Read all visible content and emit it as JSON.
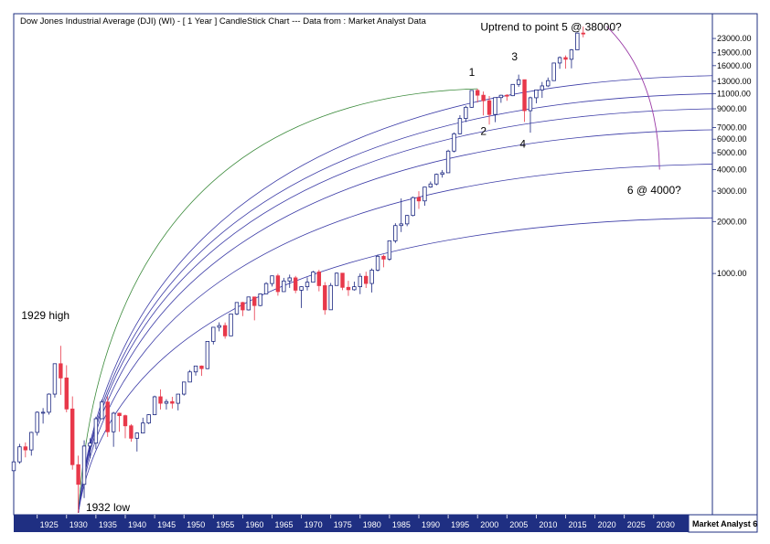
{
  "chart_data": {
    "type": "candlestick",
    "title": "Dow Jones Industrial Average (DJI) (WI) -  [ 1 Year ] CandleStick Chart --- Data from : Market Analyst Data",
    "interval": "1 Year",
    "y_scale": "log",
    "ylim": [
      40,
      32000
    ],
    "xlim": [
      1921,
      2040
    ],
    "y_ticks": [
      {
        "value": 23000,
        "label": "23000.00"
      },
      {
        "value": 19000,
        "label": "19000.00"
      },
      {
        "value": 16000,
        "label": "16000.00"
      },
      {
        "value": 13000,
        "label": "13000.00"
      },
      {
        "value": 11000,
        "label": "11000.00"
      },
      {
        "value": 9000,
        "label": "9000.00"
      },
      {
        "value": 7000,
        "label": "7000.00"
      },
      {
        "value": 6000,
        "label": "6000.00"
      },
      {
        "value": 5000,
        "label": "5000.00"
      },
      {
        "value": 4000,
        "label": "4000.00"
      },
      {
        "value": 3000,
        "label": "3000.00"
      },
      {
        "value": 2000,
        "label": "2000.00"
      },
      {
        "value": 1000,
        "label": "1000.00"
      }
    ],
    "x_ticks": [
      {
        "value": 1925,
        "label": "1925"
      },
      {
        "value": 1930,
        "label": "1930"
      },
      {
        "value": 1935,
        "label": "1935"
      },
      {
        "value": 1940,
        "label": "1940"
      },
      {
        "value": 1945,
        "label": "1945"
      },
      {
        "value": 1950,
        "label": "1950"
      },
      {
        "value": 1955,
        "label": "1955"
      },
      {
        "value": 1960,
        "label": "1960"
      },
      {
        "value": 1965,
        "label": "1965"
      },
      {
        "value": 1970,
        "label": "1970"
      },
      {
        "value": 1975,
        "label": "1975"
      },
      {
        "value": 1980,
        "label": "1980"
      },
      {
        "value": 1985,
        "label": "1985"
      },
      {
        "value": 1990,
        "label": "1990"
      },
      {
        "value": 1995,
        "label": "1995"
      },
      {
        "value": 2000,
        "label": "2000"
      },
      {
        "value": 2005,
        "label": "2005"
      },
      {
        "value": 2010,
        "label": "2010"
      },
      {
        "value": 2015,
        "label": "2015"
      },
      {
        "value": 2020,
        "label": "2020"
      },
      {
        "value": 2025,
        "label": "2025"
      },
      {
        "value": 2030,
        "label": "2030"
      }
    ],
    "candles": [
      {
        "year": 1921,
        "open": 72,
        "high": 82,
        "low": 64,
        "close": 81
      },
      {
        "year": 1922,
        "open": 81,
        "high": 103,
        "low": 79,
        "close": 99
      },
      {
        "year": 1923,
        "open": 99,
        "high": 105,
        "low": 86,
        "close": 95
      },
      {
        "year": 1924,
        "open": 95,
        "high": 121,
        "low": 88,
        "close": 120
      },
      {
        "year": 1925,
        "open": 120,
        "high": 159,
        "low": 115,
        "close": 157
      },
      {
        "year": 1926,
        "open": 157,
        "high": 166,
        "low": 135,
        "close": 157
      },
      {
        "year": 1927,
        "open": 157,
        "high": 202,
        "low": 152,
        "close": 200
      },
      {
        "year": 1928,
        "open": 200,
        "high": 300,
        "low": 191,
        "close": 300
      },
      {
        "year": 1929,
        "open": 300,
        "high": 381,
        "low": 198,
        "close": 248
      },
      {
        "year": 1930,
        "open": 248,
        "high": 294,
        "low": 157,
        "close": 164
      },
      {
        "year": 1931,
        "open": 164,
        "high": 194,
        "low": 73,
        "close": 78
      },
      {
        "year": 1932,
        "open": 78,
        "high": 88,
        "low": 41,
        "close": 60
      },
      {
        "year": 1933,
        "open": 60,
        "high": 108,
        "low": 50,
        "close": 100
      },
      {
        "year": 1934,
        "open": 100,
        "high": 111,
        "low": 85,
        "close": 104
      },
      {
        "year": 1935,
        "open": 104,
        "high": 148,
        "low": 96,
        "close": 144
      },
      {
        "year": 1936,
        "open": 144,
        "high": 186,
        "low": 143,
        "close": 180
      },
      {
        "year": 1937,
        "open": 180,
        "high": 194,
        "low": 113,
        "close": 121
      },
      {
        "year": 1938,
        "open": 121,
        "high": 158,
        "low": 99,
        "close": 155
      },
      {
        "year": 1939,
        "open": 155,
        "high": 156,
        "low": 121,
        "close": 150
      },
      {
        "year": 1940,
        "open": 150,
        "high": 152,
        "low": 111,
        "close": 131
      },
      {
        "year": 1941,
        "open": 131,
        "high": 134,
        "low": 106,
        "close": 111
      },
      {
        "year": 1942,
        "open": 111,
        "high": 120,
        "low": 93,
        "close": 119
      },
      {
        "year": 1943,
        "open": 119,
        "high": 146,
        "low": 119,
        "close": 136
      },
      {
        "year": 1944,
        "open": 136,
        "high": 153,
        "low": 134,
        "close": 152
      },
      {
        "year": 1945,
        "open": 152,
        "high": 196,
        "low": 151,
        "close": 193
      },
      {
        "year": 1946,
        "open": 193,
        "high": 213,
        "low": 163,
        "close": 177
      },
      {
        "year": 1947,
        "open": 177,
        "high": 187,
        "low": 163,
        "close": 181
      },
      {
        "year": 1948,
        "open": 181,
        "high": 193,
        "low": 165,
        "close": 177
      },
      {
        "year": 1949,
        "open": 177,
        "high": 200,
        "low": 161,
        "close": 200
      },
      {
        "year": 1950,
        "open": 200,
        "high": 235,
        "low": 196,
        "close": 235
      },
      {
        "year": 1951,
        "open": 235,
        "high": 276,
        "low": 238,
        "close": 269
      },
      {
        "year": 1952,
        "open": 269,
        "high": 292,
        "low": 256,
        "close": 291
      },
      {
        "year": 1953,
        "open": 291,
        "high": 293,
        "low": 255,
        "close": 281
      },
      {
        "year": 1954,
        "open": 281,
        "high": 404,
        "low": 279,
        "close": 404
      },
      {
        "year": 1955,
        "open": 404,
        "high": 488,
        "low": 388,
        "close": 488
      },
      {
        "year": 1956,
        "open": 488,
        "high": 521,
        "low": 462,
        "close": 499
      },
      {
        "year": 1957,
        "open": 499,
        "high": 520,
        "low": 419,
        "close": 435
      },
      {
        "year": 1958,
        "open": 435,
        "high": 583,
        "low": 436,
        "close": 583
      },
      {
        "year": 1959,
        "open": 583,
        "high": 679,
        "low": 574,
        "close": 679
      },
      {
        "year": 1960,
        "open": 679,
        "high": 685,
        "low": 566,
        "close": 615
      },
      {
        "year": 1961,
        "open": 615,
        "high": 734,
        "low": 610,
        "close": 731
      },
      {
        "year": 1962,
        "open": 731,
        "high": 726,
        "low": 535,
        "close": 652
      },
      {
        "year": 1963,
        "open": 652,
        "high": 767,
        "low": 646,
        "close": 762
      },
      {
        "year": 1964,
        "open": 762,
        "high": 891,
        "low": 766,
        "close": 874
      },
      {
        "year": 1965,
        "open": 874,
        "high": 969,
        "low": 840,
        "close": 969
      },
      {
        "year": 1966,
        "open": 969,
        "high": 995,
        "low": 744,
        "close": 785
      },
      {
        "year": 1967,
        "open": 785,
        "high": 943,
        "low": 786,
        "close": 905
      },
      {
        "year": 1968,
        "open": 905,
        "high": 985,
        "low": 825,
        "close": 943
      },
      {
        "year": 1969,
        "open": 943,
        "high": 968,
        "low": 769,
        "close": 800
      },
      {
        "year": 1970,
        "open": 800,
        "high": 842,
        "low": 631,
        "close": 838
      },
      {
        "year": 1971,
        "open": 838,
        "high": 950,
        "low": 797,
        "close": 890
      },
      {
        "year": 1972,
        "open": 890,
        "high": 1036,
        "low": 889,
        "close": 1020
      },
      {
        "year": 1973,
        "open": 1020,
        "high": 1051,
        "low": 788,
        "close": 850
      },
      {
        "year": 1974,
        "open": 850,
        "high": 891,
        "low": 577,
        "close": 616
      },
      {
        "year": 1975,
        "open": 616,
        "high": 881,
        "low": 632,
        "close": 852
      },
      {
        "year": 1976,
        "open": 852,
        "high": 1014,
        "low": 858,
        "close": 1004
      },
      {
        "year": 1977,
        "open": 1004,
        "high": 999,
        "low": 800,
        "close": 831
      },
      {
        "year": 1978,
        "open": 831,
        "high": 907,
        "low": 742,
        "close": 805
      },
      {
        "year": 1979,
        "open": 805,
        "high": 897,
        "low": 796,
        "close": 838
      },
      {
        "year": 1980,
        "open": 838,
        "high": 1000,
        "low": 759,
        "close": 963
      },
      {
        "year": 1981,
        "open": 963,
        "high": 1024,
        "low": 824,
        "close": 875
      },
      {
        "year": 1982,
        "open": 875,
        "high": 1070,
        "low": 776,
        "close": 1046
      },
      {
        "year": 1983,
        "open": 1046,
        "high": 1287,
        "low": 1027,
        "close": 1258
      },
      {
        "year": 1984,
        "open": 1258,
        "high": 1286,
        "low": 1086,
        "close": 1211
      },
      {
        "year": 1985,
        "open": 1211,
        "high": 1553,
        "low": 1184,
        "close": 1546
      },
      {
        "year": 1986,
        "open": 1546,
        "high": 1955,
        "low": 1502,
        "close": 1895
      },
      {
        "year": 1987,
        "open": 1895,
        "high": 2722,
        "low": 1738,
        "close": 1938
      },
      {
        "year": 1988,
        "open": 1938,
        "high": 2183,
        "low": 1879,
        "close": 2168
      },
      {
        "year": 1989,
        "open": 2168,
        "high": 2791,
        "low": 2144,
        "close": 2753
      },
      {
        "year": 1990,
        "open": 2753,
        "high": 2999,
        "low": 2365,
        "close": 2633
      },
      {
        "year": 1991,
        "open": 2633,
        "high": 3168,
        "low": 2470,
        "close": 3168
      },
      {
        "year": 1992,
        "open": 3168,
        "high": 3413,
        "low": 3136,
        "close": 3301
      },
      {
        "year": 1993,
        "open": 3301,
        "high": 3794,
        "low": 3241,
        "close": 3754
      },
      {
        "year": 1994,
        "open": 3754,
        "high": 3978,
        "low": 3593,
        "close": 3834
      },
      {
        "year": 1995,
        "open": 3834,
        "high": 5216,
        "low": 3832,
        "close": 5117
      },
      {
        "year": 1996,
        "open": 5117,
        "high": 6560,
        "low": 5032,
        "close": 6448
      },
      {
        "year": 1997,
        "open": 6448,
        "high": 8259,
        "low": 6391,
        "close": 7908
      },
      {
        "year": 1998,
        "open": 7908,
        "high": 9374,
        "low": 7539,
        "close": 9181
      },
      {
        "year": 1999,
        "open": 9181,
        "high": 11497,
        "low": 9120,
        "close": 11497
      },
      {
        "year": 2000,
        "open": 11497,
        "high": 11750,
        "low": 9796,
        "close": 10787
      },
      {
        "year": 2001,
        "open": 10787,
        "high": 11337,
        "low": 8236,
        "close": 10021
      },
      {
        "year": 2002,
        "open": 10021,
        "high": 10673,
        "low": 7286,
        "close": 8342
      },
      {
        "year": 2003,
        "open": 8342,
        "high": 10453,
        "low": 7524,
        "close": 10453
      },
      {
        "year": 2004,
        "open": 10453,
        "high": 10854,
        "low": 9749,
        "close": 10783
      },
      {
        "year": 2005,
        "open": 10783,
        "high": 10940,
        "low": 10012,
        "close": 10717
      },
      {
        "year": 2006,
        "open": 10717,
        "high": 12510,
        "low": 10661,
        "close": 12463
      },
      {
        "year": 2007,
        "open": 12463,
        "high": 14198,
        "low": 12050,
        "close": 13264
      },
      {
        "year": 2008,
        "open": 13264,
        "high": 13279,
        "low": 7552,
        "close": 8776
      },
      {
        "year": 2009,
        "open": 8776,
        "high": 10580,
        "low": 6547,
        "close": 10428
      },
      {
        "year": 2010,
        "open": 10428,
        "high": 11625,
        "low": 9686,
        "close": 11577
      },
      {
        "year": 2011,
        "open": 11577,
        "high": 12876,
        "low": 10404,
        "close": 12217
      },
      {
        "year": 2012,
        "open": 12217,
        "high": 13661,
        "low": 12035,
        "close": 13104
      },
      {
        "year": 2013,
        "open": 13104,
        "high": 16588,
        "low": 13104,
        "close": 16576
      },
      {
        "year": 2014,
        "open": 16576,
        "high": 18103,
        "low": 15340,
        "close": 17823
      },
      {
        "year": 2015,
        "open": 17823,
        "high": 18351,
        "low": 15370,
        "close": 17425
      },
      {
        "year": 2016,
        "open": 17425,
        "high": 19987,
        "low": 15450,
        "close": 19762
      },
      {
        "year": 2017,
        "open": 19762,
        "high": 24876,
        "low": 19677,
        "close": 24719
      },
      {
        "year": 2018,
        "open": 24719,
        "high": 26951,
        "low": 23344,
        "close": 24500
      }
    ],
    "fan_arcs": [
      {
        "x_end": 2000,
        "y_end": 11750,
        "color": "#3a8a3a"
      },
      {
        "x_end": 2040,
        "y_end": 14000,
        "color": "#3a3aa6"
      },
      {
        "x_end": 2040,
        "y_end": 11000,
        "color": "#3a3aa6"
      },
      {
        "x_end": 2040,
        "y_end": 9000,
        "color": "#3a3aa6"
      },
      {
        "x_end": 2040,
        "y_end": 6800,
        "color": "#3a3aa6"
      },
      {
        "x_end": 2040,
        "y_end": 4300,
        "color": "#3a3aa6"
      },
      {
        "x_end": 2040,
        "y_end": 2100,
        "color": "#3a3aa6"
      }
    ],
    "fan_origin": {
      "year": 1932,
      "value": 41
    },
    "projection_arc": {
      "x_start": 2022,
      "y_start": 27000,
      "x_end": 2031,
      "y_end": 4000,
      "color": "#9a3aa6"
    },
    "annotations": [
      {
        "text": "Uptrend to point 5 @ 38000?",
        "x": 2000.5,
        "y": 25500
      },
      {
        "text": "1",
        "x": 1998.5,
        "y": 14000
      },
      {
        "text": "2",
        "x": 2000.5,
        "y": 6350
      },
      {
        "text": "3",
        "x": 2005.8,
        "y": 17200
      },
      {
        "text": "4",
        "x": 2007.2,
        "y": 5350
      },
      {
        "text": "6 @ 4000?",
        "x": 2025.5,
        "y": 2900
      },
      {
        "text": "1929 high",
        "x": 1922.3,
        "y": 545
      },
      {
        "text": "1932 low",
        "x": 1933.3,
        "y": 42
      }
    ],
    "footer_brand": "Market Analyst 6",
    "colors": {
      "up": "#ffffff",
      "down": "#e8384a",
      "up_border": "#1a2680",
      "axis_bar": "#1f2f82"
    }
  }
}
